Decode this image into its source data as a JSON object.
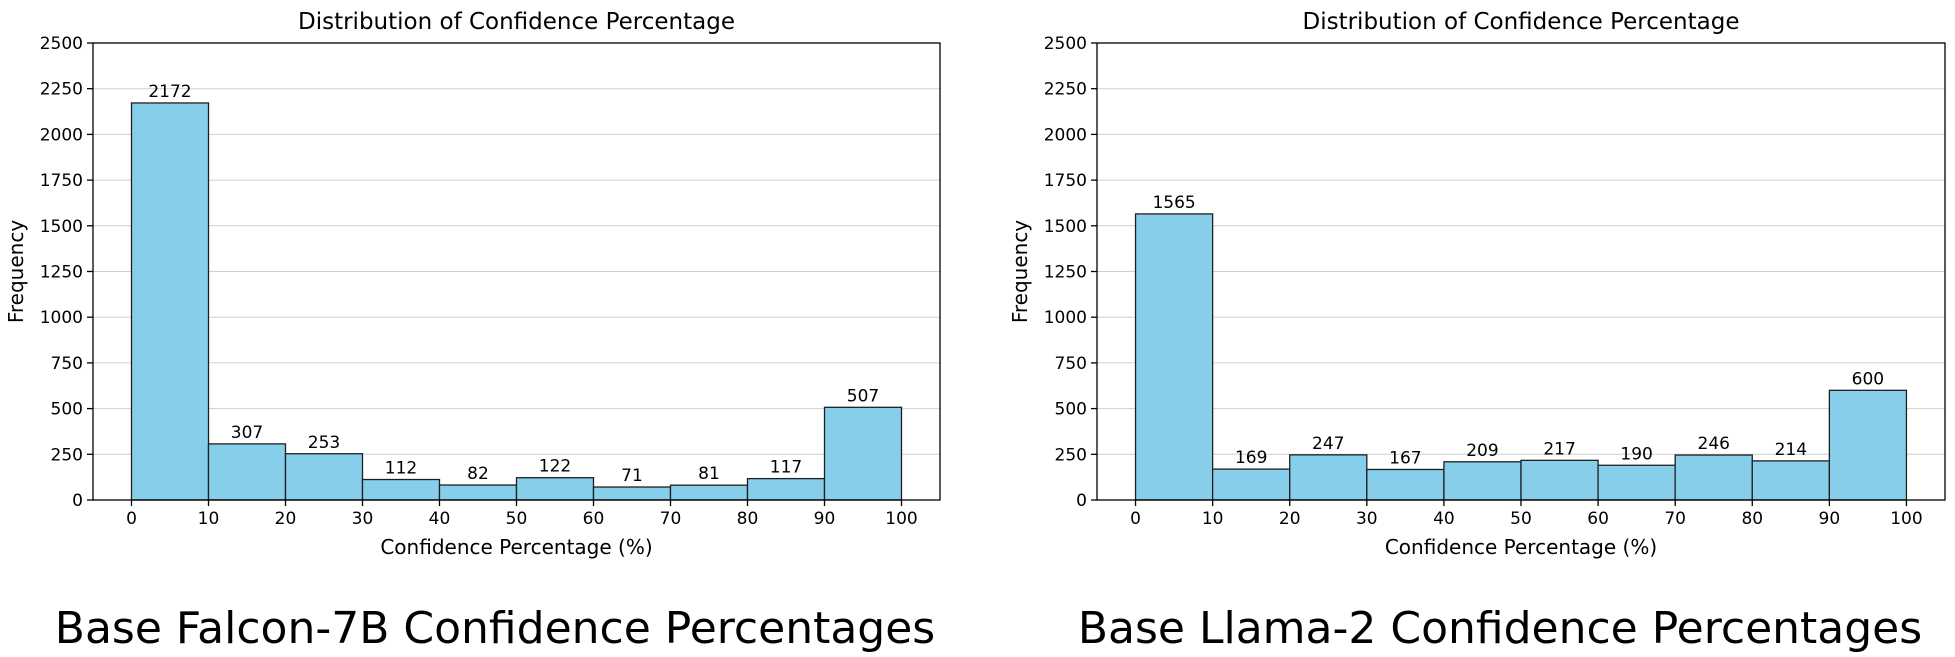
{
  "chart_data": [
    {
      "type": "bar",
      "title": "Distribution of Confidence Percentage",
      "xlabel": "Confidence Percentage (%)",
      "ylabel": "Frequency",
      "caption": "Base Falcon-7B Confidence Percentages",
      "bin_edges": [
        0,
        10,
        20,
        30,
        40,
        50,
        60,
        70,
        80,
        90,
        100
      ],
      "x_ticks": [
        "0",
        "10",
        "20",
        "30",
        "40",
        "50",
        "60",
        "70",
        "80",
        "90",
        "100"
      ],
      "y_ticks": [
        "0",
        "250",
        "500",
        "750",
        "1000",
        "1250",
        "1500",
        "1750",
        "2000",
        "2250",
        "2500"
      ],
      "values": [
        2172,
        307,
        253,
        112,
        82,
        122,
        71,
        81,
        117,
        507
      ],
      "xlim": [
        -5,
        105
      ],
      "ylim": [
        0,
        2500
      ],
      "grid": "horizontal",
      "bar_color": "#87CEEB"
    },
    {
      "type": "bar",
      "title": "Distribution of Confidence Percentage",
      "xlabel": "Confidence Percentage (%)",
      "ylabel": "Frequency",
      "caption": "Base Llama-2 Confidence Percentages",
      "bin_edges": [
        0,
        10,
        20,
        30,
        40,
        50,
        60,
        70,
        80,
        90,
        100
      ],
      "x_ticks": [
        "0",
        "10",
        "20",
        "30",
        "40",
        "50",
        "60",
        "70",
        "80",
        "90",
        "100"
      ],
      "y_ticks": [
        "0",
        "250",
        "500",
        "750",
        "1000",
        "1250",
        "1500",
        "1750",
        "2000",
        "2250",
        "2500"
      ],
      "values": [
        1565,
        169,
        247,
        167,
        209,
        217,
        190,
        246,
        214,
        600
      ],
      "xlim": [
        -5,
        105
      ],
      "ylim": [
        0,
        2500
      ],
      "grid": "horizontal",
      "bar_color": "#87CEEB"
    }
  ]
}
